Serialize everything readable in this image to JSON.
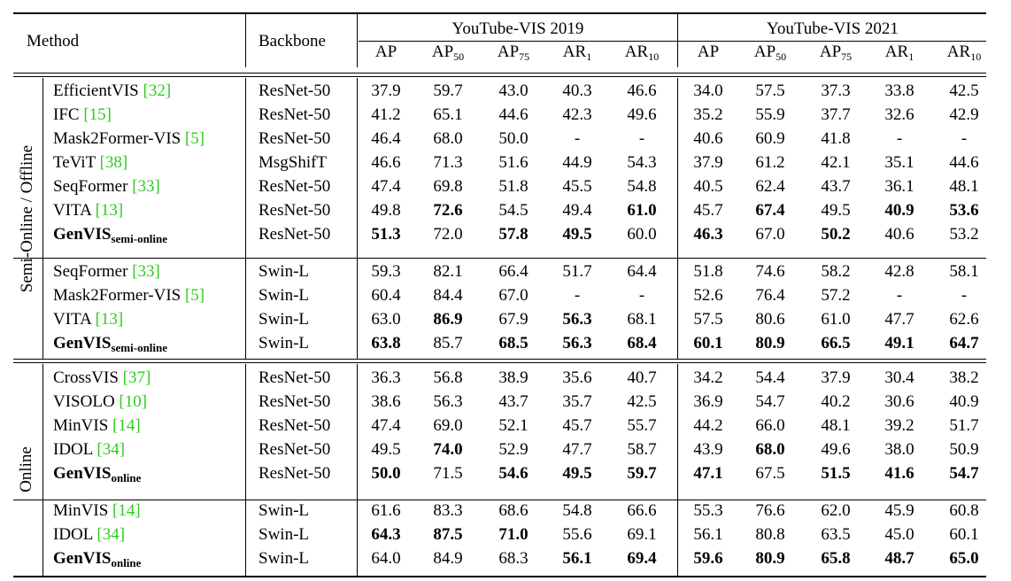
{
  "header": {
    "method": "Method",
    "backbone": "Backbone",
    "dataset_2019": "YouTube-VIS 2019",
    "dataset_2021": "YouTube-VIS 2021",
    "metrics": [
      {
        "base": "AP",
        "sub": ""
      },
      {
        "base": "AP",
        "sub": "50"
      },
      {
        "base": "AP",
        "sub": "75"
      },
      {
        "base": "AR",
        "sub": "1"
      },
      {
        "base": "AR",
        "sub": "10"
      }
    ]
  },
  "groups": [
    {
      "label": "Semi-Online / Offline"
    },
    {
      "label": "Online"
    }
  ],
  "blocks": [
    {
      "rows": [
        {
          "method": "EfficientVIS",
          "ref": "[32]",
          "sub": "",
          "backbone": "ResNet-50",
          "values": [
            "37.9",
            "59.7",
            "43.0",
            "40.3",
            "46.6",
            "34.0",
            "57.5",
            "37.3",
            "33.8",
            "42.5"
          ],
          "bold": []
        },
        {
          "method": "IFC",
          "ref": "[15]",
          "sub": "",
          "backbone": "ResNet-50",
          "values": [
            "41.2",
            "65.1",
            "44.6",
            "42.3",
            "49.6",
            "35.2",
            "55.9",
            "37.7",
            "32.6",
            "42.9"
          ],
          "bold": []
        },
        {
          "method": "Mask2Former-VIS",
          "ref": "[5]",
          "sub": "",
          "backbone": "ResNet-50",
          "values": [
            "46.4",
            "68.0",
            "50.0",
            "-",
            "-",
            "40.6",
            "60.9",
            "41.8",
            "-",
            "-"
          ],
          "bold": []
        },
        {
          "method": "TeViT",
          "ref": "[38]",
          "sub": "",
          "backbone": "MsgShifT",
          "values": [
            "46.6",
            "71.3",
            "51.6",
            "44.9",
            "54.3",
            "37.9",
            "61.2",
            "42.1",
            "35.1",
            "44.6"
          ],
          "bold": []
        },
        {
          "method": "SeqFormer",
          "ref": "[33]",
          "sub": "",
          "backbone": "ResNet-50",
          "values": [
            "47.4",
            "69.8",
            "51.8",
            "45.5",
            "54.8",
            "40.5",
            "62.4",
            "43.7",
            "36.1",
            "48.1"
          ],
          "bold": []
        },
        {
          "method": "VITA",
          "ref": "[13]",
          "sub": "",
          "backbone": "ResNet-50",
          "values": [
            "49.8",
            "72.6",
            "54.5",
            "49.4",
            "61.0",
            "45.7",
            "67.4",
            "49.5",
            "40.9",
            "53.6"
          ],
          "bold": [
            1,
            4,
            6,
            8,
            9
          ]
        },
        {
          "method": "GenVIS",
          "ref": "",
          "sub": "semi-online",
          "backbone": "ResNet-50",
          "values": [
            "51.3",
            "72.0",
            "57.8",
            "49.5",
            "60.0",
            "46.3",
            "67.0",
            "50.2",
            "40.6",
            "53.2"
          ],
          "bold": [
            0,
            2,
            3,
            5,
            7
          ]
        }
      ]
    },
    {
      "rows": [
        {
          "method": "SeqFormer",
          "ref": "[33]",
          "sub": "",
          "backbone": "Swin-L",
          "values": [
            "59.3",
            "82.1",
            "66.4",
            "51.7",
            "64.4",
            "51.8",
            "74.6",
            "58.2",
            "42.8",
            "58.1"
          ],
          "bold": []
        },
        {
          "method": "Mask2Former-VIS",
          "ref": "[5]",
          "sub": "",
          "backbone": "Swin-L",
          "values": [
            "60.4",
            "84.4",
            "67.0",
            "-",
            "-",
            "52.6",
            "76.4",
            "57.2",
            "-",
            "-"
          ],
          "bold": []
        },
        {
          "method": "VITA",
          "ref": "[13]",
          "sub": "",
          "backbone": "Swin-L",
          "values": [
            "63.0",
            "86.9",
            "67.9",
            "56.3",
            "68.1",
            "57.5",
            "80.6",
            "61.0",
            "47.7",
            "62.6"
          ],
          "bold": [
            1,
            3
          ]
        },
        {
          "method": "GenVIS",
          "ref": "",
          "sub": "semi-online",
          "backbone": "Swin-L",
          "values": [
            "63.8",
            "85.7",
            "68.5",
            "56.3",
            "68.4",
            "60.1",
            "80.9",
            "66.5",
            "49.1",
            "64.7"
          ],
          "bold": [
            0,
            2,
            3,
            4,
            5,
            6,
            7,
            8,
            9
          ]
        }
      ]
    },
    {
      "rows": [
        {
          "method": "CrossVIS",
          "ref": "[37]",
          "sub": "",
          "backbone": "ResNet-50",
          "values": [
            "36.3",
            "56.8",
            "38.9",
            "35.6",
            "40.7",
            "34.2",
            "54.4",
            "37.9",
            "30.4",
            "38.2"
          ],
          "bold": []
        },
        {
          "method": "VISOLO",
          "ref": "[10]",
          "sub": "",
          "backbone": "ResNet-50",
          "values": [
            "38.6",
            "56.3",
            "43.7",
            "35.7",
            "42.5",
            "36.9",
            "54.7",
            "40.2",
            "30.6",
            "40.9"
          ],
          "bold": []
        },
        {
          "method": "MinVIS",
          "ref": "[14]",
          "sub": "",
          "backbone": "ResNet-50",
          "values": [
            "47.4",
            "69.0",
            "52.1",
            "45.7",
            "55.7",
            "44.2",
            "66.0",
            "48.1",
            "39.2",
            "51.7"
          ],
          "bold": []
        },
        {
          "method": "IDOL",
          "ref": "[34]",
          "sub": "",
          "backbone": "ResNet-50",
          "values": [
            "49.5",
            "74.0",
            "52.9",
            "47.7",
            "58.7",
            "43.9",
            "68.0",
            "49.6",
            "38.0",
            "50.9"
          ],
          "bold": [
            1,
            6
          ]
        },
        {
          "method": "GenVIS",
          "ref": "",
          "sub": "online",
          "backbone": "ResNet-50",
          "values": [
            "50.0",
            "71.5",
            "54.6",
            "49.5",
            "59.7",
            "47.1",
            "67.5",
            "51.5",
            "41.6",
            "54.7"
          ],
          "bold": [
            0,
            2,
            3,
            4,
            5,
            7,
            8,
            9
          ]
        }
      ]
    },
    {
      "rows": [
        {
          "method": "MinVIS",
          "ref": "[14]",
          "sub": "",
          "backbone": "Swin-L",
          "values": [
            "61.6",
            "83.3",
            "68.6",
            "54.8",
            "66.6",
            "55.3",
            "76.6",
            "62.0",
            "45.9",
            "60.8"
          ],
          "bold": []
        },
        {
          "method": "IDOL",
          "ref": "[34]",
          "sub": "",
          "backbone": "Swin-L",
          "values": [
            "64.3",
            "87.5",
            "71.0",
            "55.6",
            "69.1",
            "56.1",
            "80.8",
            "63.5",
            "45.0",
            "60.1"
          ],
          "bold": [
            0,
            1,
            2
          ]
        },
        {
          "method": "GenVIS",
          "ref": "",
          "sub": "online",
          "backbone": "Swin-L",
          "values": [
            "64.0",
            "84.9",
            "68.3",
            "56.1",
            "69.4",
            "59.6",
            "80.9",
            "65.8",
            "48.7",
            "65.0"
          ],
          "bold": [
            3,
            4,
            5,
            6,
            7,
            8,
            9
          ]
        }
      ]
    }
  ]
}
